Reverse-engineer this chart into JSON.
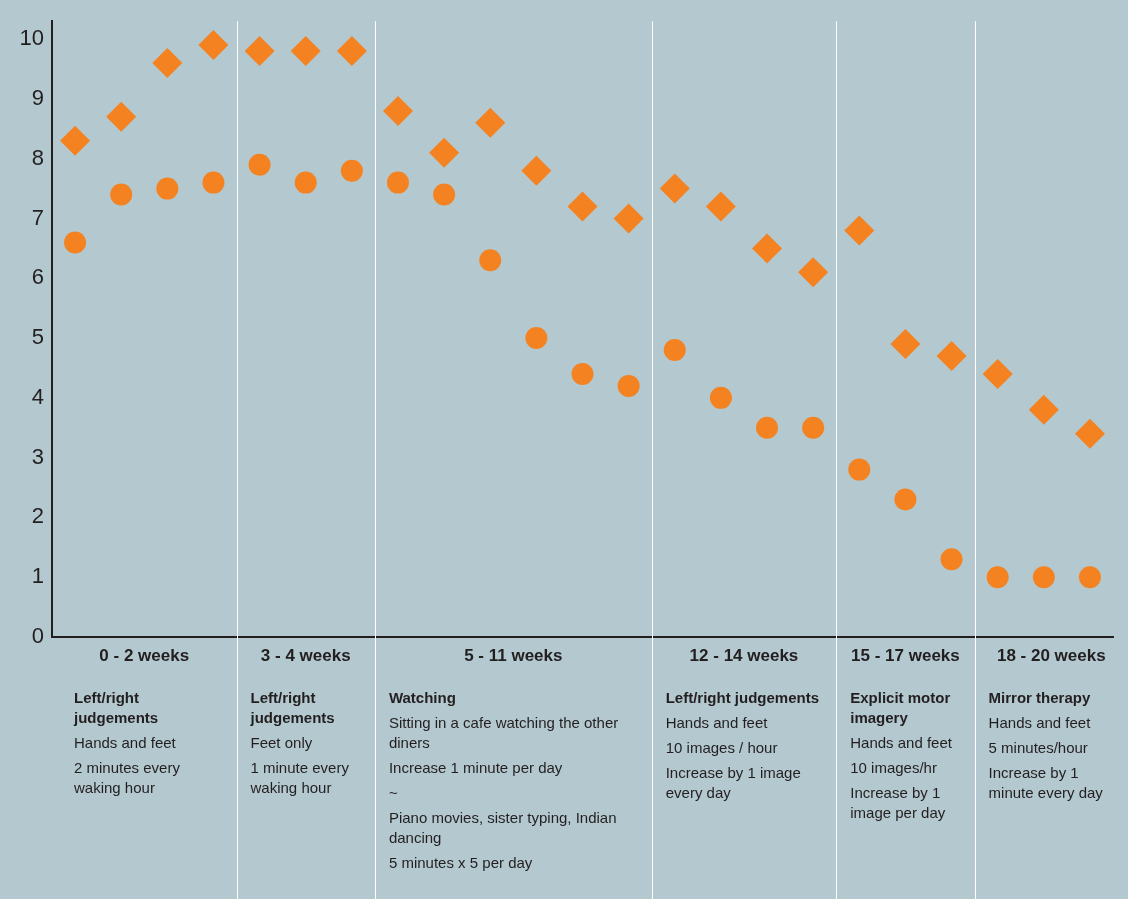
{
  "chart_data": {
    "type": "scatter",
    "categories": [
      null,
      null,
      null,
      null,
      null,
      null,
      null,
      null,
      null,
      null,
      null,
      null,
      null,
      null,
      null,
      null,
      null,
      null,
      null,
      null,
      null,
      null,
      null
    ],
    "series": [
      {
        "color": "#f58220",
        "marker": "diamond",
        "values": [
          8.3,
          8.7,
          9.6,
          9.9,
          9.8,
          9.8,
          9.8,
          8.8,
          8.1,
          8.6,
          7.8,
          7.2,
          7.0,
          7.5,
          7.2,
          6.5,
          6.1,
          6.8,
          4.9,
          4.7,
          4.4,
          3.8,
          3.4
        ]
      },
      {
        "color": "#f58220",
        "marker": "circle",
        "values": [
          6.6,
          7.4,
          7.5,
          7.6,
          7.9,
          7.6,
          7.8,
          7.6,
          7.4,
          6.3,
          5.0,
          4.4,
          4.2,
          4.8,
          4.0,
          3.5,
          3.5,
          2.8,
          2.3,
          1.3,
          1.0,
          1.0,
          1.0
        ]
      }
    ],
    "ylim": [
      0,
      10.3
    ],
    "yticks": [
      0,
      1,
      2,
      3,
      4,
      5,
      6,
      7,
      8,
      9,
      10
    ],
    "grid": false,
    "legend": false,
    "tick_labels": "y",
    "annotations": [
      "0 - 2 weeks",
      "Left/right judgements\nHands and feet\n2 minutes every waking hour",
      "3 - 4 weeks",
      "Left/right judgements\nFeet only\n1 minute every waking hour",
      "5 - 11 weeks",
      "Watching\nSitting in a cafe watching the other diners\nIncrease 1 minute per day\n~\nPiano movies, sister typing, Indian dancing\n5 minutes x 5 per day",
      "12 - 14 weeks",
      "Left/right judgements\nHands and feet\n10 images / hour\nIncrease by 1 image every day",
      "15 - 17 weeks",
      "Explicit motor imagery\nHands and feet\n10 images/hr\nIncrease by 1 image per day",
      "18 - 20 weeks",
      "Mirror therapy\nHands and feet\n5 minutes/hour\nIncrease by 1 minute every day"
    ]
  }
}
